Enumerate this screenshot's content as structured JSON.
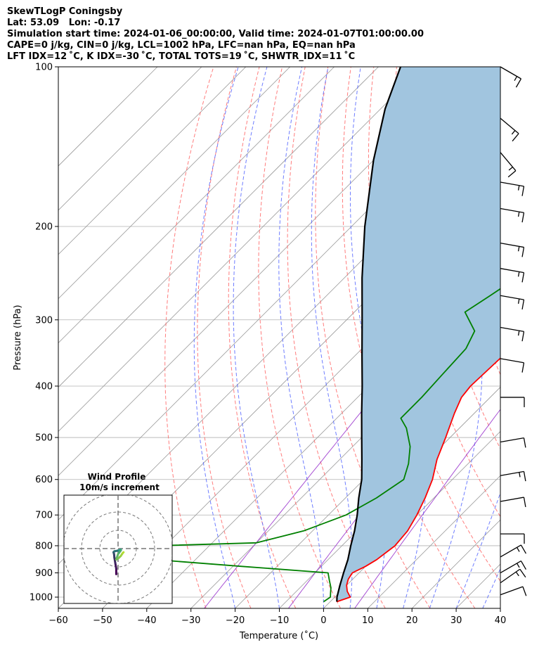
{
  "header": {
    "line1": "SkewTLogP Coningsby",
    "line2": "Lat: 53.09   Lon: -0.17",
    "line3": "Simulation start time: 2024-01-06_00:00:00, Valid time: 2024-01-07T01:00:00.00",
    "line4": "CAPE=0 j/kg, CIN=0 j/kg, LCL=1002 hPa, LFC=nan hPa, EQ=nan hPa",
    "line5": "LFT IDX=12 ˚C, K IDX=-30 ˚C, TOTAL TOTS=19 ˚C, SHWTR_IDX=11 ˚C"
  },
  "chart_data": {
    "type": "line",
    "subtype": "skew-t log-p",
    "xlabel": "Temperature (˚C)",
    "ylabel": "Pressure (hPa)",
    "xlim": [
      -60,
      40
    ],
    "ylim": [
      1050,
      100
    ],
    "yscale": "log",
    "xticks": [
      -60,
      -50,
      -40,
      -30,
      -20,
      -10,
      0,
      10,
      20,
      30,
      40
    ],
    "yticks": [
      100,
      200,
      300,
      400,
      500,
      600,
      700,
      800,
      900,
      1000
    ],
    "grid": true,
    "colors": {
      "temperature": "#ff0000",
      "dewpoint": "#008000",
      "parcel": "#000000",
      "shade": "#a1c5df",
      "dry_adiabats": "#ff6666",
      "moist_adiabats": "#5566ff",
      "mixing_ratio": "#9933cc",
      "isotherms": "#999999"
    },
    "series": [
      {
        "key": "temperature",
        "points": [
          [
            1020,
            1.5
          ],
          [
            1000,
            3.5
          ],
          [
            975,
            1.5
          ],
          [
            950,
            0
          ],
          [
            925,
            -1
          ],
          [
            900,
            -1.5
          ],
          [
            875,
            0
          ],
          [
            850,
            1
          ],
          [
            800,
            2
          ],
          [
            750,
            1.5
          ],
          [
            700,
            0
          ],
          [
            650,
            -2
          ],
          [
            600,
            -4.5
          ],
          [
            550,
            -8
          ],
          [
            500,
            -11
          ],
          [
            450,
            -14.5
          ],
          [
            420,
            -16.5
          ],
          [
            400,
            -17
          ],
          [
            350,
            -16.5
          ],
          [
            300,
            -14
          ],
          [
            270,
            -12
          ],
          [
            250,
            -10.5
          ],
          [
            225,
            -8
          ],
          [
            200,
            -5
          ],
          [
            175,
            -3
          ],
          [
            150,
            0
          ],
          [
            140,
            1
          ],
          [
            130,
            2
          ],
          [
            120,
            3
          ],
          [
            110,
            3.5
          ],
          [
            105,
            4
          ],
          [
            100,
            4
          ]
        ]
      },
      {
        "key": "dewpoint",
        "points": [
          [
            1020,
            -1.5
          ],
          [
            1000,
            -1
          ],
          [
            980,
            -2
          ],
          [
            960,
            -3
          ],
          [
            930,
            -5
          ],
          [
            900,
            -7
          ],
          [
            875,
            -28
          ],
          [
            850,
            -49
          ],
          [
            800,
            -52
          ],
          [
            790,
            -30
          ],
          [
            750,
            -22
          ],
          [
            700,
            -16
          ],
          [
            650,
            -13
          ],
          [
            600,
            -11
          ],
          [
            560,
            -13.5
          ],
          [
            520,
            -17
          ],
          [
            480,
            -22
          ],
          [
            460,
            -25.5
          ],
          [
            420,
            -25.5
          ],
          [
            380,
            -26
          ],
          [
            340,
            -26.5
          ],
          [
            315,
            -28.5
          ],
          [
            290,
            -35
          ],
          [
            270,
            -33
          ],
          [
            240,
            -30
          ],
          [
            210,
            -32
          ],
          [
            190,
            -34
          ],
          [
            170,
            -35
          ],
          [
            150,
            -35
          ],
          [
            130,
            -33
          ],
          [
            110,
            -30
          ],
          [
            100,
            -28
          ]
        ]
      },
      {
        "key": "parcel",
        "points": [
          [
            1020,
            1.5
          ],
          [
            1000,
            0.5
          ],
          [
            950,
            -1.5
          ],
          [
            900,
            -3.5
          ],
          [
            850,
            -5.5
          ],
          [
            800,
            -8
          ],
          [
            750,
            -10.5
          ],
          [
            700,
            -13.5
          ],
          [
            650,
            -17
          ],
          [
            600,
            -20.5
          ],
          [
            550,
            -25
          ],
          [
            500,
            -30
          ],
          [
            450,
            -35.5
          ],
          [
            400,
            -41.5
          ],
          [
            350,
            -48.5
          ],
          [
            300,
            -56.5
          ],
          [
            250,
            -66
          ],
          [
            200,
            -77
          ],
          [
            150,
            -90
          ],
          [
            120,
            -99
          ],
          [
            100,
            -105
          ]
        ]
      }
    ],
    "wind_barbs": [
      {
        "pressure": 100,
        "speed": 15,
        "direction": 120
      },
      {
        "pressure": 125,
        "speed": 15,
        "direction": 130
      },
      {
        "pressure": 145,
        "speed": 15,
        "direction": 140
      },
      {
        "pressure": 165,
        "speed": 15,
        "direction": 100
      },
      {
        "pressure": 185,
        "speed": 15,
        "direction": 100
      },
      {
        "pressure": 215,
        "speed": 15,
        "direction": 100
      },
      {
        "pressure": 240,
        "speed": 15,
        "direction": 100
      },
      {
        "pressure": 270,
        "speed": 15,
        "direction": 100
      },
      {
        "pressure": 310,
        "speed": 15,
        "direction": 100
      },
      {
        "pressure": 355,
        "speed": 10,
        "direction": 100
      },
      {
        "pressure": 420,
        "speed": 10,
        "direction": 90
      },
      {
        "pressure": 510,
        "speed": 10,
        "direction": 80
      },
      {
        "pressure": 590,
        "speed": 15,
        "direction": 80
      },
      {
        "pressure": 660,
        "speed": 10,
        "direction": 80
      },
      {
        "pressure": 760,
        "speed": 10,
        "direction": 90
      },
      {
        "pressure": 840,
        "speed": 15,
        "direction": 60
      },
      {
        "pressure": 900,
        "speed": 15,
        "direction": 60
      },
      {
        "pressure": 940,
        "speed": 15,
        "direction": 55
      },
      {
        "pressure": 990,
        "speed": 10,
        "direction": 70
      }
    ],
    "inset": {
      "title": "Wind Profile",
      "subtitle": "10m/s increment",
      "rings": [
        10,
        20,
        30
      ],
      "hodograph": [
        [
          -1,
          -14
        ],
        [
          -1,
          -11
        ],
        [
          -1.5,
          -8
        ],
        [
          -2,
          -5
        ],
        [
          -2.2,
          -3
        ],
        [
          -2.5,
          -2
        ],
        [
          -2,
          -1.5
        ],
        [
          0.5,
          -1
        ],
        [
          1.5,
          -0.5
        ],
        [
          1.5,
          -1
        ],
        [
          0,
          -3
        ],
        [
          -1,
          -6
        ],
        [
          0.5,
          -5
        ],
        [
          1.5,
          -4
        ],
        [
          2.5,
          -2.5
        ],
        [
          3,
          -2
        ]
      ]
    }
  }
}
